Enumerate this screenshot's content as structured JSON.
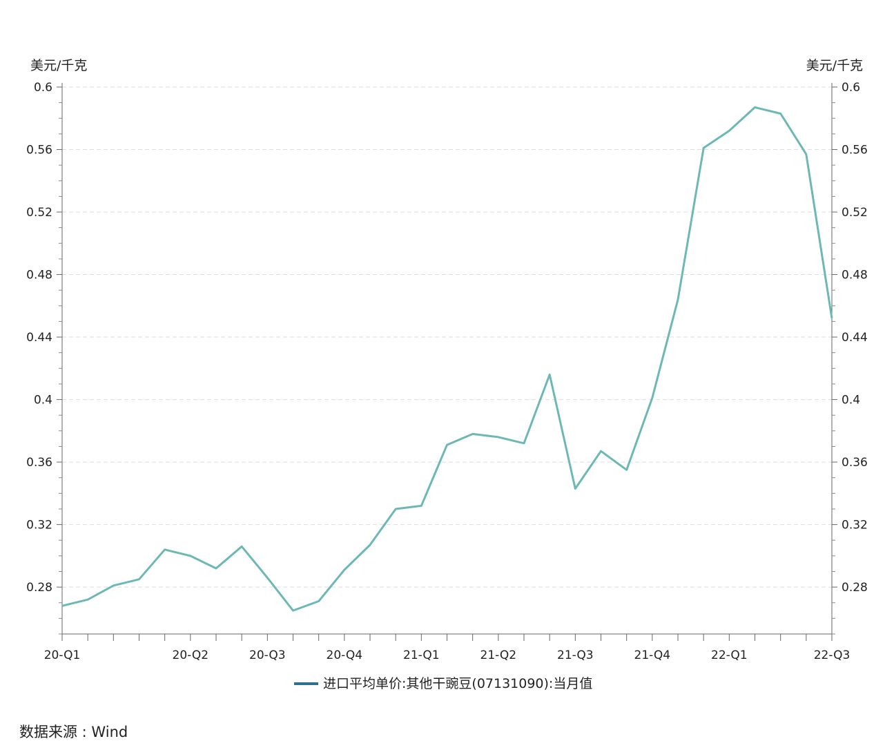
{
  "chart_data": {
    "type": "line",
    "y_unit_left": "美元/千克",
    "y_unit_right": "美元/千克",
    "ylim": [
      0.25,
      0.6
    ],
    "yticks": [
      0.28,
      0.32,
      0.36,
      0.4,
      0.44,
      0.48,
      0.52,
      0.56,
      0.6
    ],
    "ytick_labels": [
      "0.28",
      "0.32",
      "0.36",
      "0.4",
      "0.44",
      "0.48",
      "0.52",
      "0.56",
      "0.6"
    ],
    "grid": true,
    "legend_position": "bottom-center",
    "x_tick_labels": [
      "20-Q1",
      "20-Q2",
      "20-Q3",
      "20-Q4",
      "21-Q1",
      "21-Q2",
      "21-Q3",
      "21-Q4",
      "22-Q1",
      "22-Q3"
    ],
    "x": [
      "2020-01",
      "2020-02",
      "2020-03",
      "2020-04",
      "2020-05",
      "2020-06",
      "2020-07",
      "2020-08",
      "2020-09",
      "2020-10",
      "2020-11",
      "2020-12",
      "2021-01",
      "2021-02",
      "2021-03",
      "2021-04",
      "2021-05",
      "2021-06",
      "2021-07",
      "2021-08",
      "2021-09",
      "2021-10",
      "2021-11",
      "2021-12",
      "2022-01",
      "2022-02",
      "2022-03",
      "2022-04",
      "2022-05",
      "2022-06",
      "2022-07"
    ],
    "series": [
      {
        "name": "进口平均单价:其他干豌豆(07131090):当月值",
        "color": "#6cb8b4",
        "values": [
          0.268,
          0.272,
          0.281,
          0.285,
          0.304,
          0.3,
          0.292,
          0.306,
          0.286,
          0.265,
          0.271,
          0.291,
          0.307,
          0.33,
          0.332,
          0.371,
          0.378,
          0.376,
          0.372,
          0.416,
          0.343,
          0.367,
          0.355,
          0.401,
          0.464,
          0.561,
          0.572,
          0.587,
          0.583,
          0.557,
          0.452
        ]
      }
    ],
    "legend_swatch_color": "#2e7090"
  },
  "footer": {
    "source": "数据来源 : Wind"
  }
}
